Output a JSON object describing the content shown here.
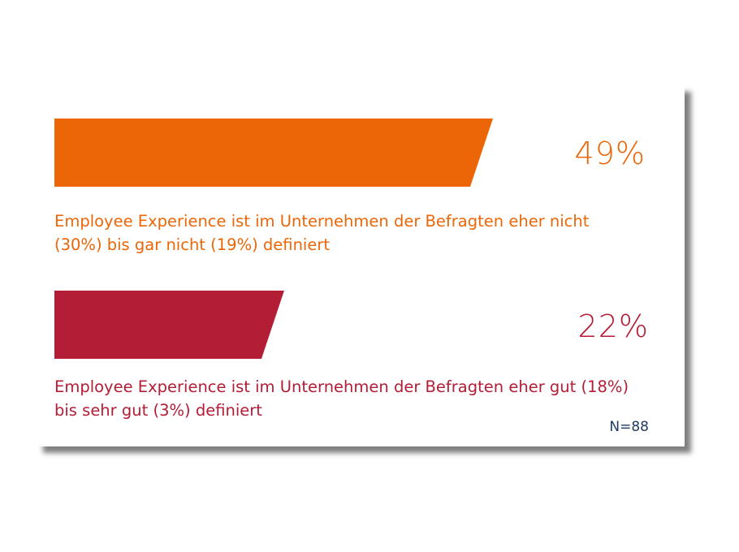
{
  "chart_data": {
    "type": "bar",
    "orientation": "horizontal",
    "categories": [
      "Employee Experience ist im Unternehmen der Befragten eher nicht (30%) bis gar nicht (19%) definiert",
      "Employee Experience ist im Unternehmen der Befragten eher gut (18%) bis sehr gut (3%) definiert"
    ],
    "values": [
      49,
      22
    ],
    "value_labels": [
      "49%",
      "22%"
    ],
    "colors": [
      "#ec6608",
      "#b31d35"
    ],
    "note": "N=88"
  }
}
